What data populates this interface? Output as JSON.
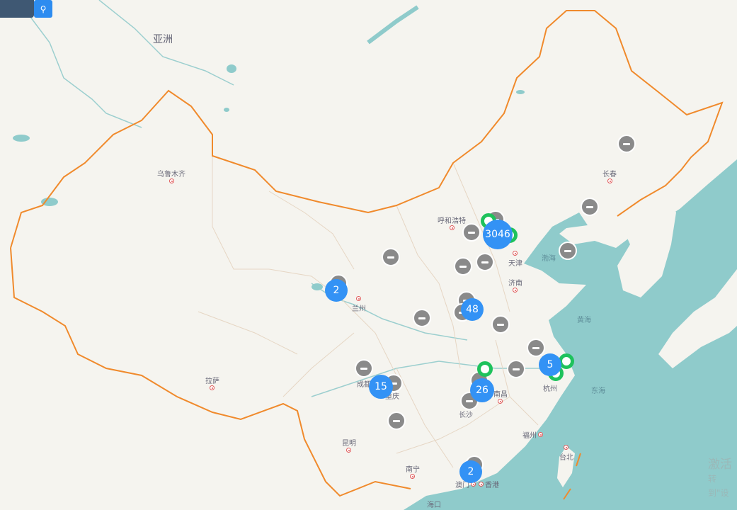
{
  "search": {
    "icon": "search-icon",
    "button_color": "#2d8cf0"
  },
  "map": {
    "continent_label": "亚洲",
    "colors": {
      "land": "#f5f4ef",
      "sea": "#8fcbcb",
      "border": "#f08a2c",
      "cluster": "#3392f5",
      "marker_gray": "#8a8a8a",
      "marker_green": "#1ec25c"
    },
    "cities": [
      "乌鲁木齐",
      "呼和浩特",
      "长春",
      "天津",
      "济南",
      "兰州",
      "成都",
      "重庆",
      "长沙",
      "南昌",
      "杭州",
      "福州",
      "昆明",
      "南宁",
      "澳门",
      "香港",
      "海口",
      "拉萨",
      "台北"
    ],
    "seas": [
      "渤海",
      "黄海",
      "东海"
    ],
    "clusters": [
      "3046",
      "48",
      "2",
      "15",
      "26",
      "5",
      "2"
    ]
  },
  "watermark": {
    "line1": "激活",
    "line2": "转到\"设"
  }
}
